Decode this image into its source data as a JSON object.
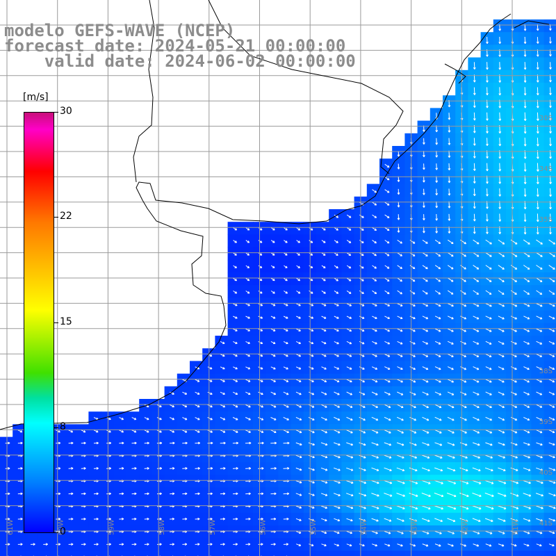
{
  "titles": {
    "line1": "modelo GEFS-WAVE (NCEP)",
    "line2": "forecast date: 2024-05-21 00:00:00",
    "line3": "    valid date: 2024-06-02 00:00:00"
  },
  "colorbar": {
    "unit": "[m/s]",
    "ticks": [
      "30",
      "22",
      "15",
      "8",
      "0"
    ],
    "colors": [
      "#c8107a",
      "#ff00c8",
      "#ff0000",
      "#ff7700",
      "#ffff00",
      "#40e000",
      "#00e0a0",
      "#00ffff",
      "#0080ff",
      "#0000ff"
    ]
  },
  "map": {
    "land_color": "#ffffff",
    "coast_color": "#000000",
    "grid_color": "#9a9a9a",
    "arrow_color": "#ffffff",
    "lat_labels": [
      "30S",
      "34S",
      "35S",
      "38S",
      "39S",
      "40S",
      "41S"
    ],
    "lon_labels": [
      "61W",
      "60W",
      "59W",
      "58W",
      "57W",
      "56W",
      "55W",
      "54W",
      "53W",
      "52W",
      "51W"
    ]
  }
}
